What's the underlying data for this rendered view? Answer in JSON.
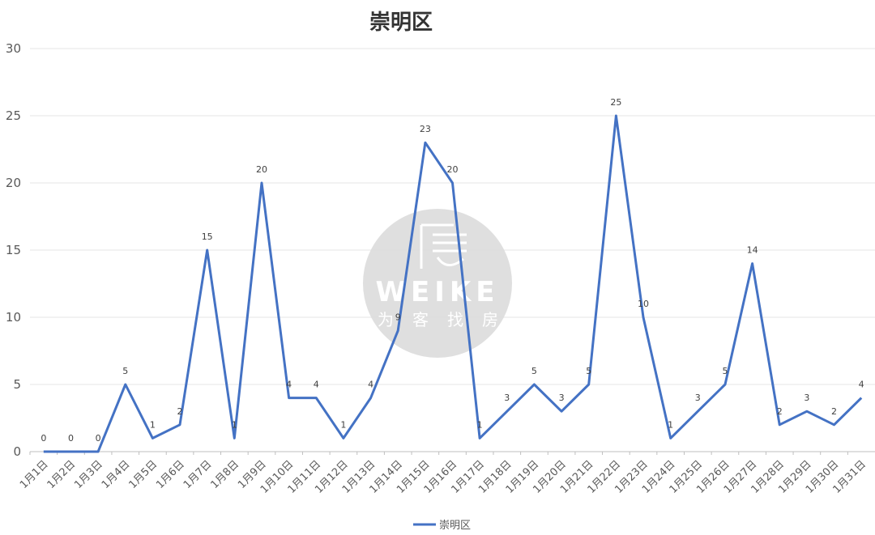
{
  "chart_data": {
    "type": "line",
    "title": "崇明区",
    "categories": [
      "1月1日",
      "1月2日",
      "1月3日",
      "1月4日",
      "1月5日",
      "1月6日",
      "1月7日",
      "1月8日",
      "1月9日",
      "1月10日",
      "1月11日",
      "1月12日",
      "1月13日",
      "1月14日",
      "1月15日",
      "1月16日",
      "1月17日",
      "1月18日",
      "1月19日",
      "1月20日",
      "1月21日",
      "1月22日",
      "1月23日",
      "1月24日",
      "1月25日",
      "1月26日",
      "1月27日",
      "1月28日",
      "1月29日",
      "1月30日",
      "1月31日"
    ],
    "series": [
      {
        "name": "崇明区",
        "values": [
          0,
          0,
          0,
          5,
          1,
          2,
          15,
          1,
          20,
          4,
          4,
          1,
          4,
          9,
          23,
          20,
          1,
          3,
          5,
          3,
          5,
          25,
          10,
          1,
          3,
          5,
          14,
          2,
          3,
          2,
          4
        ]
      }
    ],
    "ylim": [
      0,
      30
    ],
    "yticks": [
      0,
      5,
      10,
      15,
      20,
      25,
      30
    ],
    "grid": true,
    "legend": "bottom",
    "color": "#4472C4"
  },
  "watermark": {
    "brand": "WEIKE",
    "slogan": [
      "为",
      "客",
      "找",
      "房"
    ]
  }
}
